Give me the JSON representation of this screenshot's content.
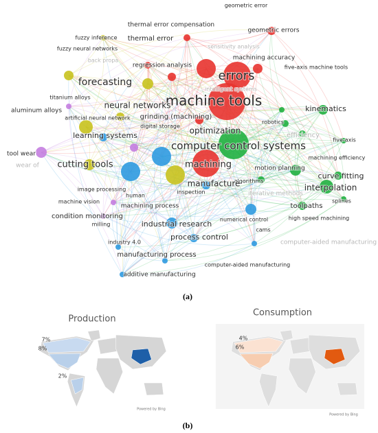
{
  "figure": {
    "network": {
      "clusters": {
        "red": "#e8332f",
        "green": "#20b040",
        "blue": "#2f9ae0",
        "yellow": "#c8c21e",
        "purple": "#c47ee0"
      },
      "keywords": [
        {
          "label": "geometric error",
          "cluster": "red"
        },
        {
          "label": "thermal error compensation",
          "cluster": "red"
        },
        {
          "label": "geometric errors",
          "cluster": "red"
        },
        {
          "label": "thermal error",
          "cluster": "red"
        },
        {
          "label": "fuzzy inference",
          "cluster": "yellow"
        },
        {
          "label": "fuzzy neural networks",
          "cluster": "yellow"
        },
        {
          "label": "sensitivity analysis",
          "cluster": "red",
          "faded": true
        },
        {
          "label": "machining accuracy",
          "cluster": "red"
        },
        {
          "label": "regression analysis",
          "cluster": "red"
        },
        {
          "label": "back propa",
          "cluster": "yellow",
          "faded": true
        },
        {
          "label": "five-axis machine tools",
          "cluster": "red"
        },
        {
          "label": "errors",
          "cluster": "red"
        },
        {
          "label": "forecasting",
          "cluster": "yellow"
        },
        {
          "label": "intelligent systems",
          "cluster": "red",
          "faded": true
        },
        {
          "label": "titanium alloys",
          "cluster": "purple"
        },
        {
          "label": "machine tools",
          "cluster": "red"
        },
        {
          "label": "kinematics",
          "cluster": "green"
        },
        {
          "label": "neural networks",
          "cluster": "yellow"
        },
        {
          "label": "aluminum alloys",
          "cluster": "purple"
        },
        {
          "label": "artificial neural network",
          "cluster": "yellow"
        },
        {
          "label": "grinding (machining)",
          "cluster": "red"
        },
        {
          "label": "robotics",
          "cluster": "green"
        },
        {
          "label": "efficiency",
          "cluster": "green",
          "faded": true
        },
        {
          "label": "optimization",
          "cluster": "red"
        },
        {
          "label": "digital storage",
          "cluster": "blue"
        },
        {
          "label": "learning systems",
          "cluster": "blue"
        },
        {
          "label": "computer control systems",
          "cluster": "green"
        },
        {
          "label": "five-axis",
          "cluster": "green"
        },
        {
          "label": "tool wear",
          "cluster": "purple"
        },
        {
          "label": "cutting tools",
          "cluster": "yellow"
        },
        {
          "label": "machining",
          "cluster": "red"
        },
        {
          "label": "machining efficiency",
          "cluster": "green"
        },
        {
          "label": "wear of",
          "cluster": "purple",
          "faded": true
        },
        {
          "label": "motion planning",
          "cluster": "green"
        },
        {
          "label": "curve fitting",
          "cluster": "green"
        },
        {
          "label": "algorithms",
          "cluster": "green"
        },
        {
          "label": "interpolation",
          "cluster": "green"
        },
        {
          "label": "image processing",
          "cluster": "blue"
        },
        {
          "label": "human",
          "cluster": "blue"
        },
        {
          "label": "inspection",
          "cluster": "blue"
        },
        {
          "label": "manufacture",
          "cluster": "blue"
        },
        {
          "label": "iterative methods",
          "cluster": "green",
          "faded": true
        },
        {
          "label": "toolpaths",
          "cluster": "green"
        },
        {
          "label": "splines",
          "cluster": "green"
        },
        {
          "label": "machine vision",
          "cluster": "purple"
        },
        {
          "label": "machining process",
          "cluster": "blue"
        },
        {
          "label": "condition monitoring",
          "cluster": "purple"
        },
        {
          "label": "high speed machining",
          "cluster": "green"
        },
        {
          "label": "numerical control",
          "cluster": "blue"
        },
        {
          "label": "industrial research",
          "cluster": "blue"
        },
        {
          "label": "milling",
          "cluster": "blue"
        },
        {
          "label": "cams",
          "cluster": "blue"
        },
        {
          "label": "process control",
          "cluster": "blue"
        },
        {
          "label": "industry 4.0",
          "cluster": "blue"
        },
        {
          "label": "computer-aided manufacturing",
          "cluster": "blue",
          "faded": true
        },
        {
          "label": "manufacturing process",
          "cluster": "blue"
        },
        {
          "label": "computer-aided manufacturing",
          "cluster": "blue"
        },
        {
          "label": "additive manufacturing",
          "cluster": "blue"
        }
      ]
    },
    "caption_a": "(a)",
    "maps": [
      {
        "title": "Production",
        "labels": [
          "7%",
          "8%",
          "2%"
        ],
        "attribution": "Powered by Bing"
      },
      {
        "title": "Consumption",
        "labels": [
          "4%",
          "6%"
        ],
        "attribution": "Powered by Bing"
      }
    ],
    "caption_b": "(b)"
  }
}
